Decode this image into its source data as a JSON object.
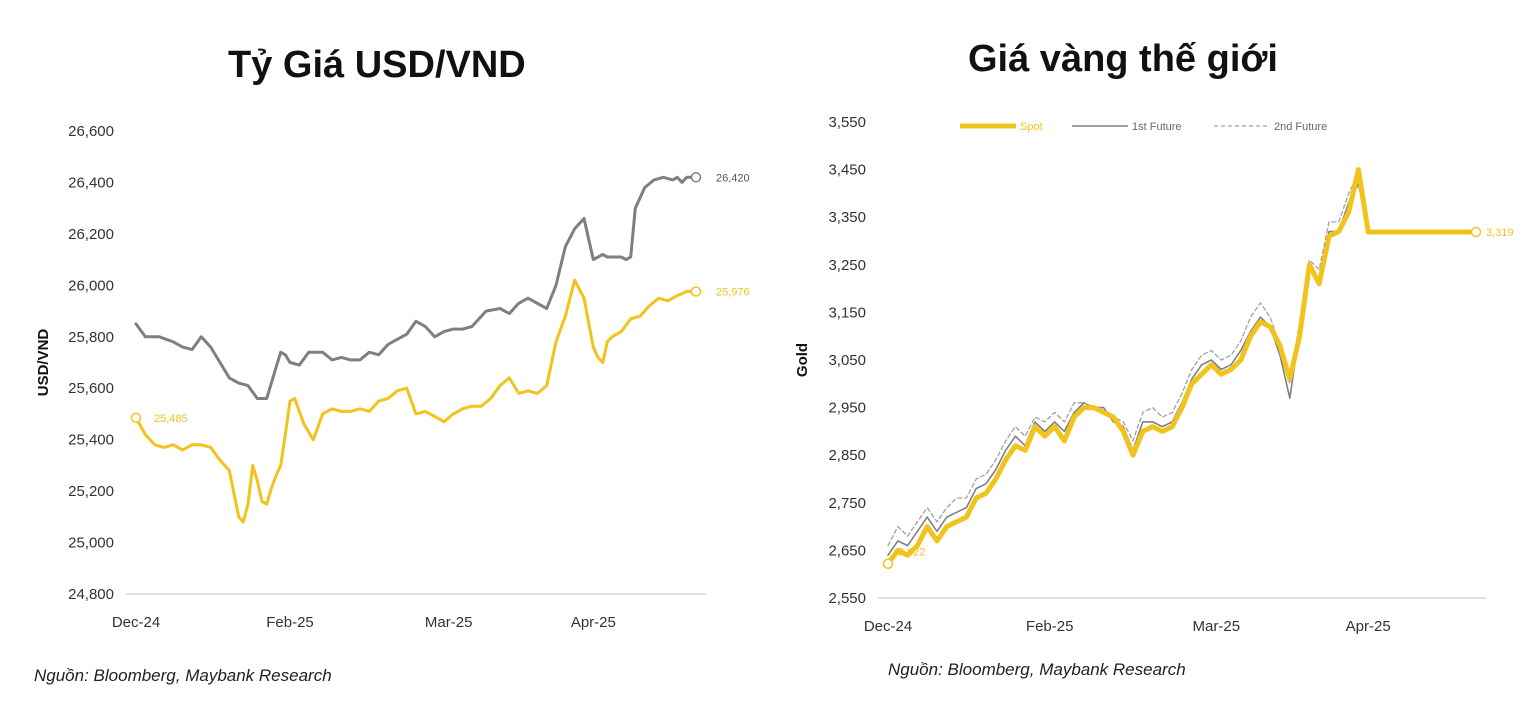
{
  "charts": [
    {
      "title": "Tỷ Giá USD/VND",
      "source": "Nguồn: Bloomberg, Maybank Research"
    },
    {
      "title": "Giá vàng thế giới",
      "source": "Nguồn: Bloomberg, Maybank Research"
    }
  ],
  "chart_data": [
    {
      "type": "line",
      "ylabel": "USD/VND",
      "xlabel": "",
      "ylim": [
        24800,
        26600
      ],
      "yticks": [
        24800,
        25000,
        25200,
        25400,
        25600,
        25800,
        26000,
        26200,
        26400,
        26600
      ],
      "ytick_labels": [
        "24,800",
        "25,000",
        "25,200",
        "25,400",
        "25,600",
        "25,800",
        "26,000",
        "26,200",
        "26,400",
        "26,600"
      ],
      "xlim": [
        0,
        120
      ],
      "xticks": [
        0,
        33,
        67,
        98
      ],
      "xtick_labels": [
        "Dec-24",
        "Feb-25",
        "Mar-25",
        "Apr-25"
      ],
      "grid": false,
      "series": [
        {
          "color": "#7f7f7f",
          "end_label": "26,420",
          "x": [
            0,
            2,
            5,
            8,
            10,
            12,
            14,
            16,
            18,
            20,
            22,
            24,
            26,
            28,
            30,
            31,
            32,
            33,
            35,
            37,
            40,
            42,
            44,
            46,
            48,
            50,
            52,
            54,
            56,
            58,
            60,
            62,
            64,
            66,
            68,
            70,
            72,
            75,
            78,
            80,
            82,
            84,
            86,
            88,
            90,
            92,
            94,
            96,
            98,
            100,
            101,
            102,
            104,
            105,
            106,
            107,
            109,
            111,
            113,
            115,
            116,
            117,
            118,
            120
          ],
          "y": [
            25850,
            25800,
            25800,
            25780,
            25760,
            25750,
            25800,
            25760,
            25700,
            25640,
            25620,
            25610,
            25560,
            25560,
            25680,
            25740,
            25730,
            25700,
            25690,
            25740,
            25740,
            25710,
            25720,
            25710,
            25710,
            25740,
            25730,
            25770,
            25790,
            25810,
            25860,
            25840,
            25800,
            25820,
            25830,
            25830,
            25840,
            25900,
            25910,
            25890,
            25930,
            25950,
            25930,
            25910,
            26000,
            26150,
            26220,
            26260,
            26100,
            26120,
            26110,
            26110,
            26110,
            26100,
            26110,
            26300,
            26380,
            26410,
            26420,
            26410,
            26420,
            26400,
            26420,
            26420
          ]
        },
        {
          "color": "#f2c31c",
          "start_label": "25,485",
          "end_label": "25,976",
          "x": [
            0,
            2,
            4,
            6,
            8,
            10,
            12,
            14,
            16,
            18,
            20,
            22,
            23,
            24,
            25,
            26,
            27,
            28,
            29,
            30,
            31,
            32,
            33,
            34,
            36,
            38,
            40,
            42,
            44,
            46,
            48,
            50,
            52,
            54,
            56,
            58,
            60,
            62,
            64,
            66,
            68,
            70,
            72,
            74,
            76,
            78,
            80,
            82,
            84,
            86,
            88,
            90,
            92,
            94,
            96,
            98,
            99,
            100,
            101,
            102,
            104,
            106,
            108,
            110,
            112,
            114,
            116,
            118,
            120
          ],
          "y": [
            25485,
            25420,
            25380,
            25370,
            25380,
            25360,
            25380,
            25380,
            25370,
            25320,
            25280,
            25100,
            25080,
            25150,
            25300,
            25240,
            25160,
            25150,
            25210,
            25260,
            25300,
            25420,
            25550,
            25560,
            25460,
            25400,
            25500,
            25520,
            25510,
            25510,
            25520,
            25510,
            25550,
            25560,
            25590,
            25600,
            25500,
            25510,
            25490,
            25470,
            25500,
            25520,
            25530,
            25530,
            25560,
            25610,
            25640,
            25580,
            25590,
            25580,
            25610,
            25780,
            25880,
            26020,
            25950,
            25760,
            25720,
            25700,
            25780,
            25800,
            25820,
            25870,
            25880,
            25920,
            25950,
            25940,
            25960,
            25976,
            25976
          ]
        }
      ]
    },
    {
      "type": "line",
      "ylabel": "Gold",
      "xlabel": "",
      "ylim": [
        2550,
        3550
      ],
      "yticks": [
        2550,
        2650,
        2750,
        2850,
        2950,
        3050,
        3150,
        3250,
        3350,
        3450,
        3550
      ],
      "ytick_labels": [
        "2,550",
        "2,650",
        "2,750",
        "2,850",
        "2,950",
        "3,050",
        "3,150",
        "3,250",
        "3,350",
        "3,450",
        "3,550"
      ],
      "xlim": [
        0,
        120
      ],
      "xticks": [
        0,
        33,
        67,
        98
      ],
      "xtick_labels": [
        "Dec-24",
        "Feb-25",
        "Mar-25",
        "Apr-25"
      ],
      "grid": false,
      "legend": "top",
      "series": [
        {
          "name": "Spot",
          "color": "#f2c31c",
          "style": "thick",
          "start_label": "2,622",
          "end_label": "3,319",
          "x": [
            0,
            2,
            4,
            6,
            8,
            10,
            12,
            14,
            16,
            18,
            20,
            22,
            24,
            26,
            28,
            30,
            32,
            34,
            36,
            38,
            40,
            42,
            44,
            46,
            48,
            50,
            52,
            54,
            56,
            58,
            60,
            62,
            64,
            66,
            68,
            70,
            72,
            74,
            76,
            78,
            80,
            82,
            84,
            86,
            88,
            90,
            92,
            94,
            96,
            98,
            100,
            102,
            104,
            106,
            108,
            110,
            112,
            114,
            116,
            118,
            120
          ],
          "y": [
            2622,
            2650,
            2640,
            2660,
            2700,
            2670,
            2700,
            2710,
            2720,
            2760,
            2770,
            2800,
            2840,
            2870,
            2860,
            2910,
            2890,
            2910,
            2880,
            2930,
            2950,
            2950,
            2940,
            2930,
            2900,
            2850,
            2900,
            2910,
            2900,
            2910,
            2950,
            3000,
            3020,
            3040,
            3020,
            3030,
            3050,
            3100,
            3130,
            3120,
            3080,
            3010,
            3100,
            3250,
            3210,
            3310,
            3320,
            3360,
            3450,
            3319,
            3319,
            3319,
            3319,
            3319,
            3319,
            3319,
            3319,
            3319,
            3319,
            3319,
            3319
          ]
        },
        {
          "name": "1st Future",
          "color": "#808080",
          "style": "solid",
          "x": [
            0,
            2,
            4,
            6,
            8,
            10,
            12,
            14,
            16,
            18,
            20,
            22,
            24,
            26,
            28,
            30,
            32,
            34,
            36,
            38,
            40,
            42,
            44,
            46,
            48,
            50,
            52,
            54,
            56,
            58,
            60,
            62,
            64,
            66,
            68,
            70,
            72,
            74,
            76,
            78,
            80,
            82,
            84,
            86,
            88,
            90,
            92,
            94,
            96,
            98
          ],
          "y": [
            2640,
            2670,
            2660,
            2690,
            2720,
            2690,
            2720,
            2730,
            2740,
            2780,
            2790,
            2820,
            2860,
            2890,
            2870,
            2920,
            2900,
            2920,
            2900,
            2940,
            2960,
            2950,
            2950,
            2920,
            2910,
            2860,
            2920,
            2920,
            2910,
            2920,
            2960,
            3010,
            3040,
            3050,
            3030,
            3040,
            3070,
            3110,
            3140,
            3120,
            3060,
            2970,
            3110,
            3240,
            3220,
            3320,
            3320,
            3380,
            3420,
            3319
          ]
        },
        {
          "name": "2nd Future",
          "color": "#a0a0a0",
          "style": "dashed",
          "x": [
            0,
            2,
            4,
            6,
            8,
            10,
            12,
            14,
            16,
            18,
            20,
            22,
            24,
            26,
            28,
            30,
            32,
            34,
            36,
            38,
            40,
            42,
            44,
            46,
            48,
            50,
            52,
            54,
            56,
            58,
            60,
            62,
            64,
            66,
            68,
            70,
            72,
            74,
            76,
            78,
            80,
            82,
            84,
            86,
            88,
            90,
            92,
            94,
            96,
            98
          ],
          "y": [
            2660,
            2700,
            2680,
            2710,
            2740,
            2710,
            2740,
            2760,
            2760,
            2800,
            2810,
            2840,
            2880,
            2910,
            2890,
            2930,
            2920,
            2940,
            2920,
            2960,
            2960,
            2950,
            2940,
            2930,
            2920,
            2880,
            2940,
            2950,
            2930,
            2940,
            2980,
            3030,
            3060,
            3070,
            3050,
            3060,
            3090,
            3140,
            3170,
            3140,
            3080,
            3000,
            3130,
            3260,
            3240,
            3340,
            3340,
            3400,
            3440,
            3340
          ]
        }
      ]
    }
  ]
}
